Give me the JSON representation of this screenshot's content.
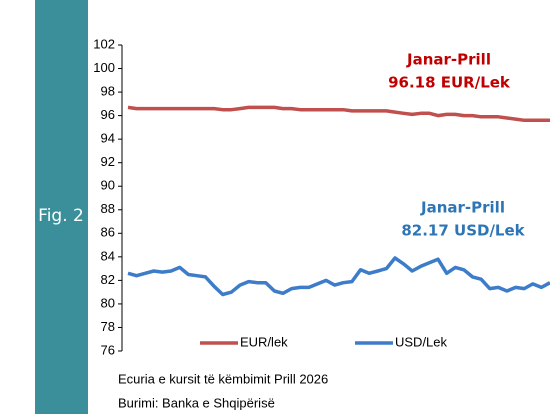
{
  "fig_label": "Fig. 2",
  "chart_data": {
    "type": "line",
    "categories": [
      null,
      null,
      null,
      null,
      null,
      null,
      null,
      null,
      null,
      null,
      null,
      null,
      null,
      null,
      null,
      null,
      null,
      null,
      null,
      null,
      null,
      null,
      null,
      null,
      null,
      null,
      null,
      null,
      null,
      null,
      null,
      null,
      null,
      null,
      null,
      null,
      null,
      null,
      null,
      null,
      null,
      null,
      null,
      null,
      null,
      null,
      null,
      null,
      null,
      null
    ],
    "series": [
      {
        "name": "EUR/lek",
        "color": "#c0504d",
        "values": [
          96.7,
          96.6,
          96.6,
          96.6,
          96.6,
          96.6,
          96.6,
          96.6,
          96.6,
          96.6,
          96.6,
          96.5,
          96.5,
          96.6,
          96.7,
          96.7,
          96.7,
          96.7,
          96.6,
          96.6,
          96.5,
          96.5,
          96.5,
          96.5,
          96.5,
          96.5,
          96.4,
          96.4,
          96.4,
          96.4,
          96.4,
          96.3,
          96.2,
          96.1,
          96.2,
          96.2,
          96.0,
          96.1,
          96.1,
          96.0,
          96.0,
          95.9,
          95.9,
          95.9,
          95.8,
          95.7,
          95.6,
          95.6,
          95.6,
          95.6
        ]
      },
      {
        "name": "USD/Lek",
        "color": "#3d7cc9",
        "values": [
          82.6,
          82.4,
          82.6,
          82.8,
          82.7,
          82.8,
          83.1,
          82.5,
          82.4,
          82.3,
          81.5,
          80.8,
          81.0,
          81.6,
          81.9,
          81.8,
          81.8,
          81.1,
          80.9,
          81.3,
          81.4,
          81.4,
          81.7,
          82.0,
          81.6,
          81.8,
          81.9,
          82.9,
          82.6,
          82.8,
          83.0,
          83.9,
          83.4,
          82.8,
          83.2,
          83.5,
          83.8,
          82.6,
          83.1,
          82.9,
          82.3,
          82.1,
          81.3,
          81.4,
          81.1,
          81.4,
          81.3,
          81.7,
          81.4,
          81.8
        ]
      }
    ],
    "ylim": [
      76,
      102
    ],
    "yticks": [
      76,
      78,
      80,
      82,
      84,
      86,
      88,
      90,
      92,
      94,
      96,
      98,
      100,
      102
    ],
    "annotations": [
      {
        "color": "#c00000",
        "lines": [
          "Janar-Prill",
          "96.18 EUR/Lek"
        ]
      },
      {
        "color": "#2e75b6",
        "lines": [
          "Janar-Prill",
          "82.17 USD/Lek"
        ]
      }
    ],
    "legend": "bottom"
  },
  "notes": [
    "Ecuria e kursit të këmbimit Prill 2026",
    "Burimi: Banka e Shqipërisë"
  ]
}
